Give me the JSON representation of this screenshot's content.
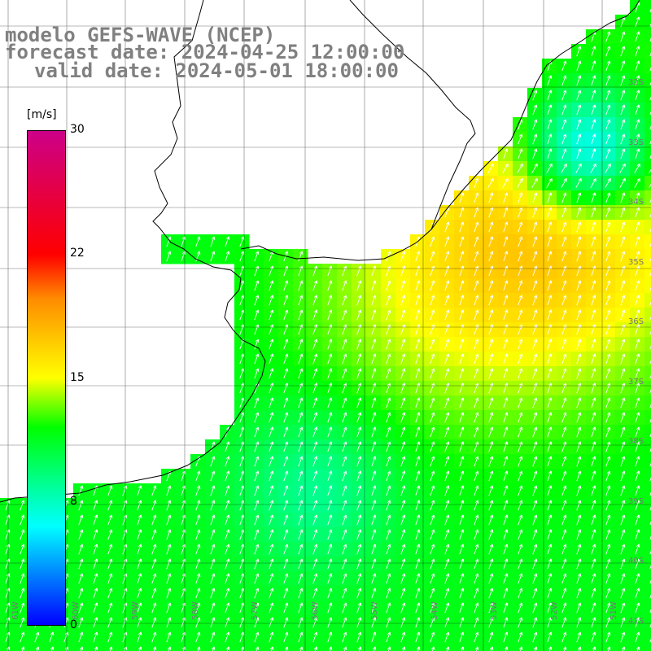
{
  "title": {
    "model": "modelo GEFS-WAVE (NCEP)",
    "forecast": "forecast date: 2024-04-25 12:00:00",
    "valid": "valid date: 2024-05-01 18:00:00"
  },
  "colorbar": {
    "unit": "[m/s]",
    "ticks": [
      "30",
      "22",
      "15",
      "8",
      "0"
    ],
    "tick_values": [
      30,
      22,
      15,
      8,
      0
    ],
    "range": [
      0,
      30
    ],
    "colors": [
      "#0000ff",
      "#00ffff",
      "#00ff00",
      "#ffff00",
      "#ff8c00",
      "#ff0000",
      "#cc0088"
    ]
  },
  "axes": {
    "lat_labels": [
      "32S",
      "33S",
      "34S",
      "35S",
      "36S",
      "37S",
      "38S",
      "39S",
      "40S",
      "41S"
    ],
    "lon_labels": [
      "61W",
      "60W",
      "59W",
      "58W",
      "57W",
      "56W",
      "55W",
      "54W",
      "53W",
      "52W",
      "51W"
    ]
  },
  "colors": {
    "land": "#ffffff",
    "grid": "#000000",
    "coast": "#000000",
    "arrows": "#ffffff",
    "label": "#808080"
  }
}
